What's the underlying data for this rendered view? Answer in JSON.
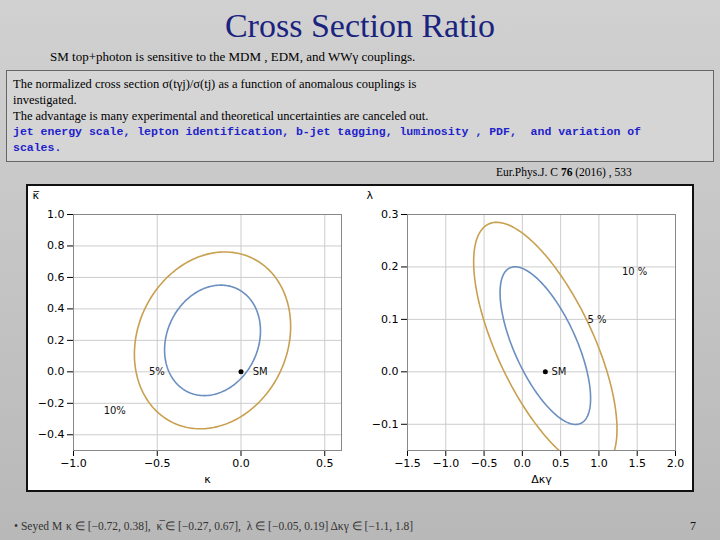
{
  "title": "Cross Section Ratio",
  "title_color": "#1a237e",
  "subtitle": "SM top+photon is sensitive to the MDM , EDM, and WWγ couplings.",
  "text_lines": [
    {
      "text": "The normalized cross section σ(tγj)/σ(tj) as a function of anomalous couplings is"
    },
    {
      "text": "investigated."
    },
    {
      "text": "The advantage is many experimental and theoretical uncertainties are canceled out."
    },
    {
      "text": "jet energy scale, lepton identification, b-jet tagging, luminosity , PDF,  and variation of",
      "color": "#2222cc"
    },
    {
      "text": "scales.",
      "color": "#2222cc"
    }
  ],
  "reference": [
    "Eur.Phys.J. C ",
    "76",
    " (2016) , 533"
  ],
  "footer": [
    "• Seyed M",
    "κ ∈ [−0.72, 0.38],  κ̅ ∈ [−0.27, 0.67],  λ ∈ [−0.05, 0.19] Δκγ ∈ [−1.1, 1.8]"
  ],
  "page_number": "7",
  "chart_data": [
    {
      "type": "contour",
      "xlabel": "κ",
      "ylabel": "κ̅",
      "xlim": [
        -1.0,
        0.6
      ],
      "ylim": [
        -0.5,
        1.0
      ],
      "xticks": [
        {
          "value": -1.0,
          "label": "−1.0"
        },
        {
          "value": -0.5,
          "label": "−0.5"
        },
        {
          "value": 0.0,
          "label": "0.0"
        },
        0.5
      ],
      "yticks": [
        {
          "value": -0.4,
          "label": "−0.4"
        },
        {
          "value": -0.2,
          "label": "−0.2"
        },
        {
          "value": 0.0,
          "label": "0.0"
        },
        0.2,
        0.4,
        0.6,
        0.8,
        {
          "value": 1.0,
          "label": "1.0"
        }
      ],
      "grid": true,
      "ellipses": [
        {
          "color": "#c8a050",
          "cx": -0.17,
          "cy": 0.2,
          "width": 0.9,
          "height": 1.15,
          "angle": -20
        },
        {
          "color": "#6a8fc0",
          "cx": -0.17,
          "cy": 0.2,
          "width": 0.55,
          "height": 0.72,
          "angle": -20
        }
      ],
      "points": [
        {
          "x": 0.0,
          "y": 0.0,
          "color": "#000000"
        }
      ],
      "annotations": [
        {
          "text": "SM",
          "x": 0.07,
          "y": 0.0
        },
        {
          "text": "5%",
          "x": -0.55,
          "y": 0.0
        },
        {
          "text": "10%",
          "x": -0.82,
          "y": -0.25
        }
      ]
    },
    {
      "type": "contour",
      "xlabel": "Δκγ",
      "ylabel": "λ",
      "xlim": [
        -1.5,
        2.0
      ],
      "ylim": [
        -0.15,
        0.3
      ],
      "xticks": [
        {
          "value": -1.5,
          "label": "−1.5"
        },
        {
          "value": -1.0,
          "label": "−1.0"
        },
        {
          "value": -0.5,
          "label": "−0.5"
        },
        {
          "value": 0.0,
          "label": "0.0"
        },
        0.5,
        {
          "value": 1.0,
          "label": "1.0"
        },
        1.5,
        {
          "value": 2.0,
          "label": "2.0"
        }
      ],
      "yticks": [
        {
          "value": -0.1,
          "label": "−0.1"
        },
        {
          "value": 0.0,
          "label": "0.0"
        },
        0.1,
        0.2,
        0.3
      ],
      "grid": true,
      "ellipses": [
        {
          "color": "#c8a050",
          "cx": 0.3,
          "cy": 0.05,
          "width": 1.9,
          "height": 0.34,
          "angle": -10
        },
        {
          "color": "#6a8fc0",
          "cx": 0.3,
          "cy": 0.05,
          "width": 1.2,
          "height": 0.22,
          "angle": -10
        }
      ],
      "points": [
        {
          "x": 0.3,
          "y": 0.0,
          "color": "#000000"
        }
      ],
      "annotations": [
        {
          "text": "SM",
          "x": 0.38,
          "y": 0.0
        },
        {
          "text": "5 %",
          "x": 0.85,
          "y": 0.1
        },
        {
          "text": "10 %",
          "x": 1.3,
          "y": 0.19
        }
      ]
    }
  ]
}
